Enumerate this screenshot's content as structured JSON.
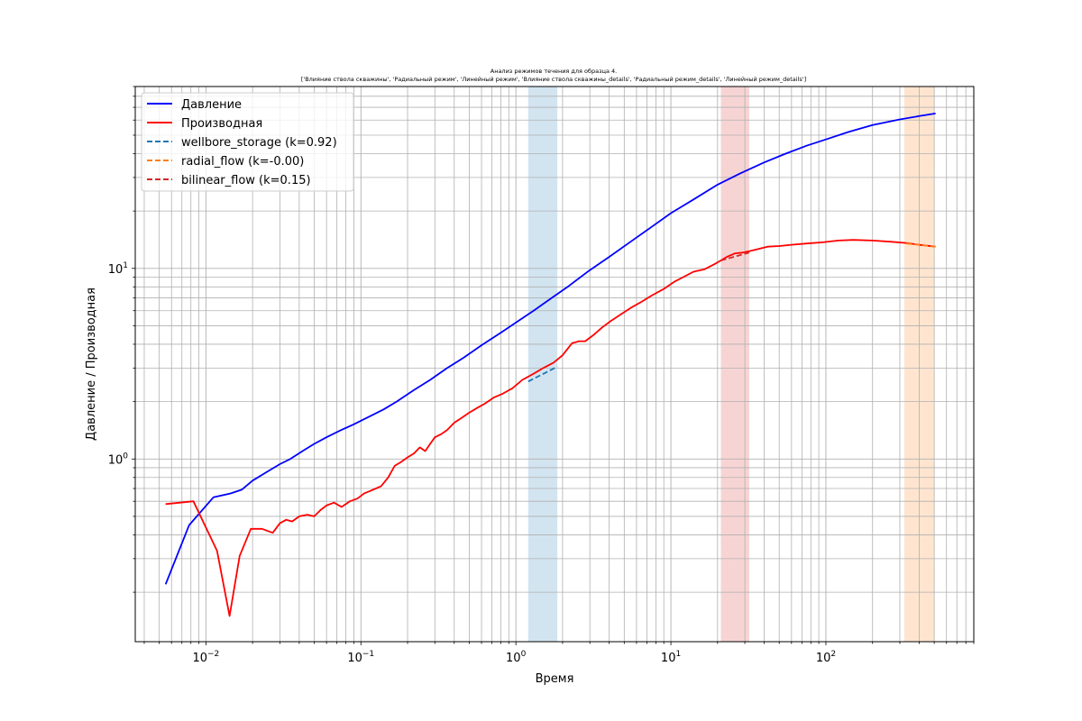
{
  "chart_data": {
    "type": "line",
    "title": "Анализ режимов течения для образца 4.",
    "subtitle": "['Влияние ствола скважины', 'Радиальный режим', 'Линейный режим', 'Влияние ствола скважины_details', 'Радиальный режим_details', 'Линейный режим_details']",
    "xlabel": "Время",
    "ylabel": "Давление / Производная",
    "xscale": "log",
    "yscale": "log",
    "xlim": [
      0.0035,
      900
    ],
    "ylim": [
      0.11,
      90
    ],
    "grid": "major and minor",
    "legend_position": "top-left",
    "x_tick_labels": [
      {
        "value": 0.01,
        "base": "10",
        "exp": "−2"
      },
      {
        "value": 0.1,
        "base": "10",
        "exp": "−1"
      },
      {
        "value": 1,
        "base": "10",
        "exp": "0"
      },
      {
        "value": 10,
        "base": "10",
        "exp": "1"
      },
      {
        "value": 100,
        "base": "10",
        "exp": "2"
      }
    ],
    "y_tick_labels": [
      {
        "value": 1,
        "base": "10",
        "exp": "0"
      },
      {
        "value": 10,
        "base": "10",
        "exp": "1"
      }
    ],
    "regions": [
      {
        "x0": 1.2,
        "x1": 1.85,
        "color": "#1f77b4",
        "opacity": 0.2
      },
      {
        "x0": 21,
        "x1": 32,
        "color": "#d62728",
        "opacity": 0.2
      },
      {
        "x0": 320,
        "x1": 500,
        "color": "#ff7f0e",
        "opacity": 0.2
      }
    ],
    "series": [
      {
        "name": "Давление",
        "color": "#0000ff",
        "style": "solid",
        "x": [
          0.0055,
          0.0078,
          0.0112,
          0.0145,
          0.017,
          0.02,
          0.025,
          0.03,
          0.035,
          0.042,
          0.05,
          0.06,
          0.072,
          0.09,
          0.11,
          0.14,
          0.17,
          0.22,
          0.28,
          0.36,
          0.46,
          0.6,
          0.8,
          1.0,
          1.3,
          1.7,
          2.2,
          3.0,
          4.0,
          5.5,
          7.5,
          10,
          14,
          20,
          28,
          40,
          55,
          75,
          100,
          140,
          200,
          300,
          400,
          510
        ],
        "y": [
          0.22,
          0.45,
          0.63,
          0.66,
          0.69,
          0.77,
          0.86,
          0.94,
          1.0,
          1.1,
          1.2,
          1.3,
          1.4,
          1.52,
          1.65,
          1.82,
          2.0,
          2.3,
          2.6,
          3.0,
          3.4,
          3.95,
          4.6,
          5.2,
          6.0,
          7.0,
          8.1,
          9.8,
          11.5,
          13.8,
          16.5,
          19.5,
          23.0,
          27.5,
          31.5,
          36.0,
          40.0,
          44.0,
          47.5,
          52.0,
          56.5,
          60.5,
          63.0,
          65.0
        ]
      },
      {
        "name": "Производная",
        "color": "#ff0000",
        "style": "solid",
        "x": [
          0.0055,
          0.0083,
          0.0118,
          0.0142,
          0.0165,
          0.0195,
          0.023,
          0.027,
          0.03,
          0.033,
          0.036,
          0.04,
          0.045,
          0.05,
          0.055,
          0.06,
          0.067,
          0.075,
          0.085,
          0.095,
          0.105,
          0.115,
          0.125,
          0.135,
          0.15,
          0.165,
          0.18,
          0.2,
          0.22,
          0.24,
          0.26,
          0.28,
          0.3,
          0.33,
          0.36,
          0.4,
          0.45,
          0.5,
          0.56,
          0.63,
          0.72,
          0.82,
          0.95,
          1.1,
          1.3,
          1.5,
          1.75,
          2.0,
          2.3,
          2.55,
          2.8,
          3.2,
          3.6,
          4.1,
          4.7,
          5.5,
          6.5,
          7.5,
          9,
          10.5,
          12,
          14,
          16.5,
          19,
          21,
          23,
          26,
          29,
          32,
          36,
          42,
          50,
          60,
          75,
          95,
          120,
          150,
          200,
          260,
          330,
          400,
          510
        ],
        "y": [
          0.58,
          0.6,
          0.33,
          0.15,
          0.31,
          0.43,
          0.43,
          0.41,
          0.46,
          0.48,
          0.47,
          0.5,
          0.51,
          0.5,
          0.54,
          0.57,
          0.59,
          0.56,
          0.6,
          0.62,
          0.66,
          0.68,
          0.7,
          0.72,
          0.8,
          0.92,
          0.96,
          1.02,
          1.07,
          1.15,
          1.1,
          1.2,
          1.3,
          1.35,
          1.42,
          1.55,
          1.65,
          1.75,
          1.85,
          1.95,
          2.1,
          2.2,
          2.35,
          2.6,
          2.8,
          3.0,
          3.2,
          3.5,
          4.05,
          4.15,
          4.15,
          4.5,
          4.9,
          5.3,
          5.7,
          6.2,
          6.7,
          7.2,
          7.8,
          8.5,
          9.0,
          9.6,
          9.9,
          10.5,
          11.0,
          11.5,
          12.0,
          12.1,
          12.3,
          12.6,
          13.0,
          13.1,
          13.3,
          13.5,
          13.7,
          14.0,
          14.1,
          14.0,
          13.8,
          13.6,
          13.3,
          13.0
        ]
      },
      {
        "name": "wellbore_storage (k=0.92)",
        "color": "#1f77b4",
        "style": "dashed",
        "x": [
          1.2,
          1.85
        ],
        "y": [
          2.55,
          3.05
        ]
      },
      {
        "name": "radial_flow (k=-0.00)",
        "color": "#ff7f0e",
        "style": "dashed",
        "x": [
          330,
          510
        ],
        "y": [
          13.5,
          13.0
        ]
      },
      {
        "name": "bilinear_flow (k=0.15)",
        "color": "#d62728",
        "style": "dashed",
        "x": [
          21,
          32
        ],
        "y": [
          11.0,
          12.1
        ]
      }
    ]
  }
}
